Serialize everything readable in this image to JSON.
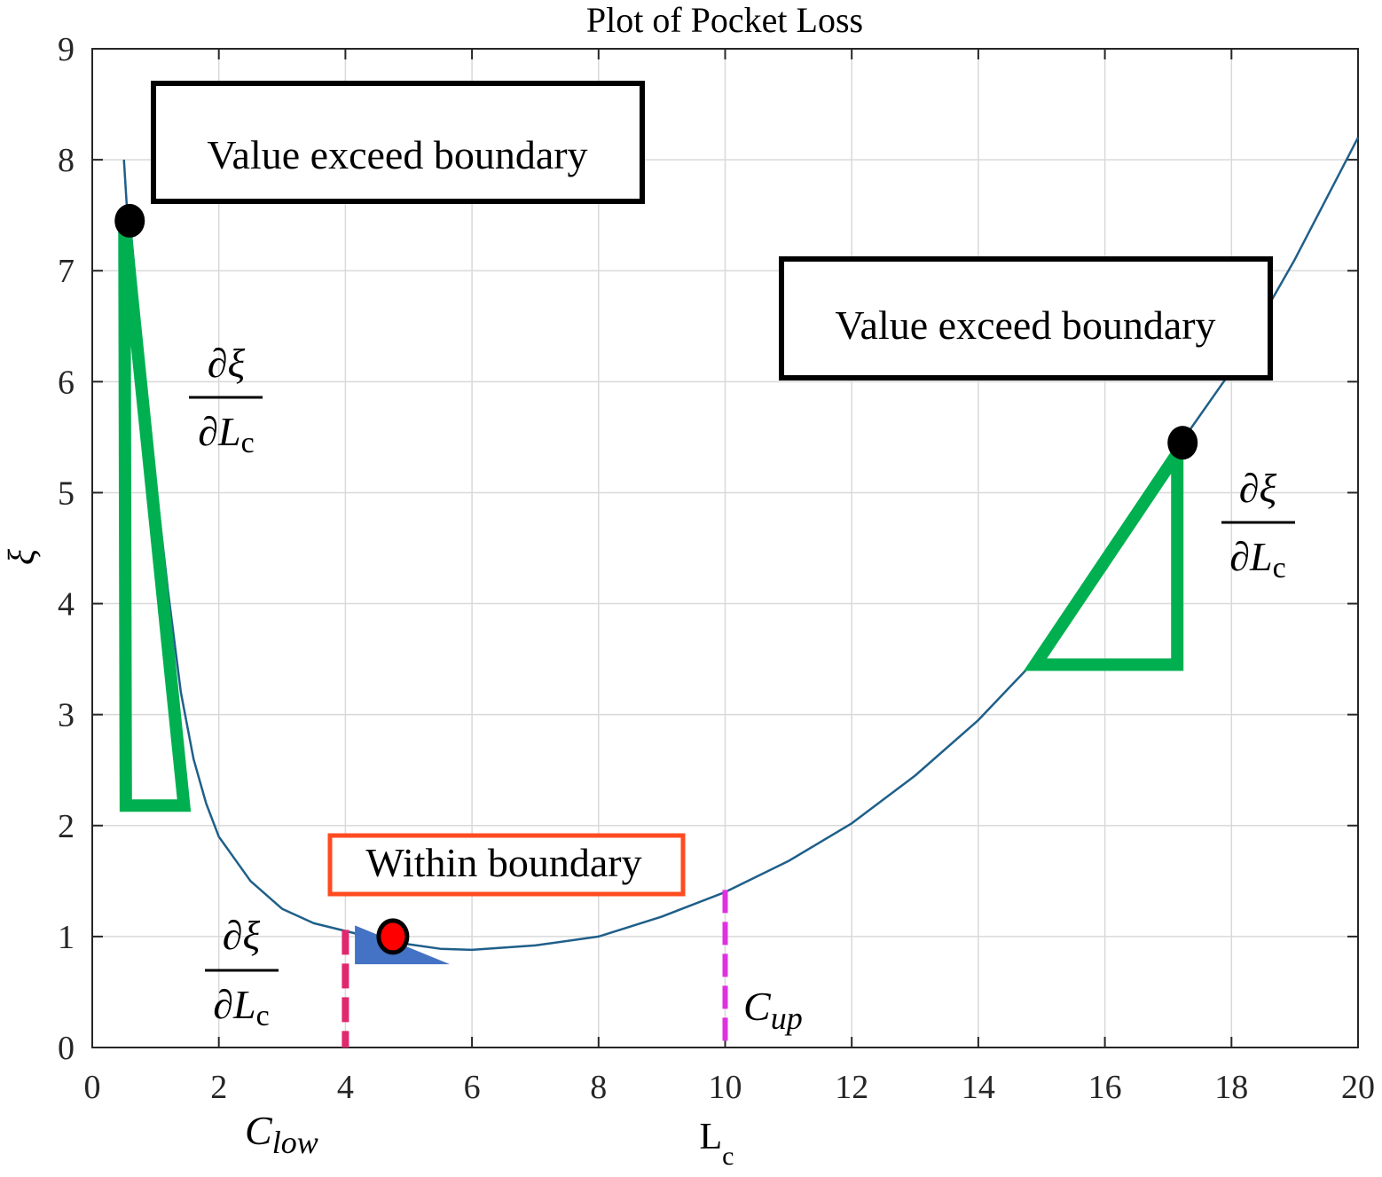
{
  "chart_data": {
    "type": "line",
    "title": "Plot of Pocket Loss",
    "xlabel": "L",
    "xlabel_sub": "c",
    "ylabel": "ξ",
    "xlim": [
      0,
      20
    ],
    "ylim": [
      0,
      9
    ],
    "grid": true,
    "x_ticks": [
      "0",
      "2",
      "4",
      "6",
      "8",
      "10",
      "12",
      "14",
      "16",
      "18",
      "20"
    ],
    "y_ticks": [
      "0",
      "1",
      "2",
      "3",
      "4",
      "5",
      "6",
      "7",
      "8",
      "9"
    ],
    "series": [
      {
        "name": "Pocket loss",
        "color": "#1f5f8a",
        "points": [
          [
            0.5,
            8.0
          ],
          [
            0.55,
            7.55
          ],
          [
            0.6,
            7.42
          ],
          [
            0.8,
            6.2
          ],
          [
            1.0,
            5.1
          ],
          [
            1.2,
            4.1
          ],
          [
            1.4,
            3.2
          ],
          [
            1.6,
            2.6
          ],
          [
            1.8,
            2.2
          ],
          [
            2.0,
            1.9
          ],
          [
            2.5,
            1.5
          ],
          [
            3.0,
            1.25
          ],
          [
            3.5,
            1.12
          ],
          [
            4.0,
            1.05
          ],
          [
            4.5,
            0.98
          ],
          [
            5.0,
            0.93
          ],
          [
            5.5,
            0.89
          ],
          [
            6.0,
            0.88
          ],
          [
            7.0,
            0.92
          ],
          [
            8.0,
            1.0
          ],
          [
            9.0,
            1.18
          ],
          [
            10.0,
            1.4
          ],
          [
            11.0,
            1.68
          ],
          [
            12.0,
            2.02
          ],
          [
            13.0,
            2.45
          ],
          [
            14.0,
            2.95
          ],
          [
            15.0,
            3.55
          ],
          [
            16.0,
            4.3
          ],
          [
            17.0,
            5.2
          ],
          [
            17.2,
            5.45
          ],
          [
            18.0,
            6.1
          ],
          [
            19.0,
            7.1
          ],
          [
            20.0,
            8.2
          ]
        ]
      }
    ],
    "annotations": {
      "box_left": "Value exceed boundary",
      "box_right": "Value exceed boundary",
      "box_within": "Within boundary",
      "deriv_num": "∂ξ",
      "deriv_den": "∂L",
      "deriv_den_sub": "c",
      "c_low_main": "C",
      "c_low_sub": "low",
      "c_up_main": "C",
      "c_up_sub": "up",
      "c_low_x": 4.0,
      "c_up_x": 10.0,
      "point_left": [
        0.55,
        7.45
      ],
      "point_right": [
        17.2,
        5.45
      ],
      "point_mid": [
        4.75,
        1.0
      ],
      "colors": {
        "slope_triangle": "#00b050",
        "small_triangle": "#4472c4",
        "c_low_line": "#e0286e",
        "c_up_line": "#e030e0",
        "within_box": "#ff4b1f",
        "mid_point": "#ff0000"
      }
    }
  }
}
